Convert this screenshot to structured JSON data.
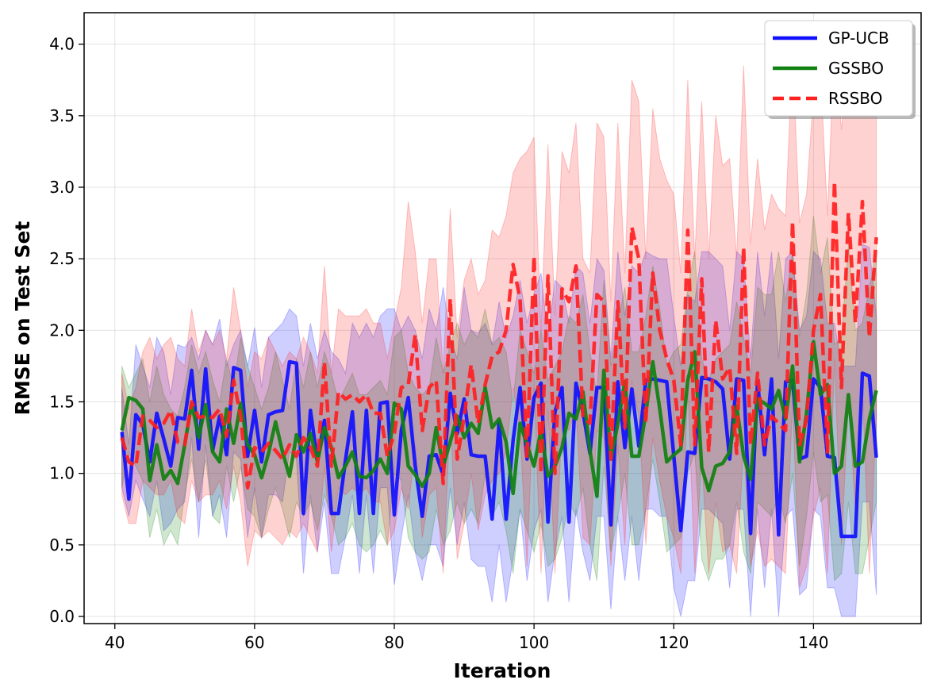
{
  "chart_data": {
    "type": "line",
    "title": "",
    "xlabel": "Iteration",
    "ylabel": "RMSE on Test Set",
    "xlim": [
      35.6,
      155.4
    ],
    "ylim": [
      -0.05,
      4.22
    ],
    "xticks": [
      40,
      60,
      80,
      100,
      120,
      140
    ],
    "yticks": [
      0.0,
      0.5,
      1.0,
      1.5,
      2.0,
      2.5,
      3.0,
      3.5,
      4.0
    ],
    "ytick_labels": [
      "0.0",
      "0.5",
      "1.0",
      "1.5",
      "2.0",
      "2.5",
      "3.0",
      "3.5",
      "4.0"
    ],
    "grid": true,
    "legend_position": "top-right",
    "x": [
      41,
      42,
      43,
      44,
      45,
      46,
      47,
      48,
      49,
      50,
      51,
      52,
      53,
      54,
      55,
      56,
      57,
      58,
      59,
      60,
      61,
      62,
      63,
      64,
      65,
      66,
      67,
      68,
      69,
      70,
      71,
      72,
      73,
      74,
      75,
      76,
      77,
      78,
      79,
      80,
      81,
      82,
      83,
      84,
      85,
      86,
      87,
      88,
      89,
      90,
      91,
      92,
      93,
      94,
      95,
      96,
      97,
      98,
      99,
      100,
      101,
      102,
      103,
      104,
      105,
      106,
      107,
      108,
      109,
      110,
      111,
      112,
      113,
      114,
      115,
      116,
      117,
      118,
      119,
      120,
      121,
      122,
      123,
      124,
      125,
      126,
      127,
      128,
      129,
      130,
      131,
      132,
      133,
      134,
      135,
      136,
      137,
      138,
      139,
      140,
      141,
      142,
      143,
      144,
      145,
      146,
      147,
      148,
      149
    ],
    "series": [
      {
        "name": "GP-UCB",
        "color": "#1010ff",
        "dash": "solid",
        "values": [
          1.29,
          0.82,
          1.41,
          1.34,
          1.08,
          1.42,
          1.24,
          1.05,
          1.39,
          1.38,
          1.72,
          1.17,
          1.73,
          1.16,
          1.4,
          1.13,
          1.74,
          1.72,
          1.12,
          1.44,
          1.08,
          1.41,
          1.43,
          1.44,
          1.78,
          1.77,
          0.72,
          1.44,
          1.09,
          1.37,
          0.72,
          0.72,
          1.09,
          1.43,
          0.72,
          1.44,
          0.72,
          1.49,
          1.5,
          0.71,
          1.3,
          1.53,
          1.05,
          0.7,
          1.12,
          1.13,
          0.99,
          1.56,
          1.28,
          1.52,
          1.13,
          1.12,
          1.12,
          0.68,
          1.36,
          0.68,
          1.23,
          1.6,
          1.1,
          1.53,
          1.63,
          0.66,
          1.43,
          1.6,
          0.66,
          1.63,
          1.43,
          1.14,
          1.6,
          1.6,
          0.64,
          1.64,
          1.18,
          1.59,
          1.19,
          1.65,
          1.66,
          1.65,
          1.64,
          1.12,
          0.6,
          1.15,
          1.14,
          1.67,
          1.66,
          1.64,
          1.59,
          1.1,
          1.66,
          1.65,
          0.58,
          1.64,
          1.13,
          1.66,
          0.57,
          1.64,
          1.65,
          1.1,
          1.12,
          1.66,
          1.6,
          1.12,
          1.11,
          0.56,
          0.56,
          0.56,
          1.7,
          1.68,
          1.11
        ]
      },
      {
        "name": "GSSBO",
        "color": "#108010",
        "dash": "solid",
        "values": [
          1.3,
          1.53,
          1.51,
          1.45,
          0.95,
          1.2,
          0.96,
          1.02,
          0.93,
          1.2,
          1.49,
          1.25,
          1.48,
          1.15,
          1.08,
          1.45,
          1.21,
          1.49,
          1.2,
          1.13,
          0.97,
          1.14,
          1.36,
          1.15,
          0.98,
          1.27,
          1.15,
          1.28,
          1.08,
          1.32,
          1.18,
          0.97,
          1.05,
          1.15,
          0.98,
          0.97,
          1.02,
          1.1,
          1.0,
          1.49,
          1.45,
          1.05,
          0.99,
          0.91,
          1.0,
          1.32,
          1.05,
          1.22,
          1.4,
          1.25,
          1.35,
          1.28,
          1.6,
          1.32,
          1.38,
          1.22,
          0.86,
          1.35,
          1.2,
          1.05,
          1.3,
          0.98,
          1.05,
          1.18,
          1.42,
          1.38,
          1.57,
          1.16,
          0.84,
          1.72,
          1.1,
          1.35,
          1.64,
          1.12,
          1.12,
          1.42,
          1.78,
          1.45,
          1.08,
          1.13,
          1.17,
          1.65,
          1.85,
          1.04,
          0.88,
          1.05,
          1.07,
          1.15,
          1.47,
          1.12,
          0.96,
          1.52,
          1.49,
          1.45,
          1.58,
          1.38,
          1.75,
          1.08,
          1.42,
          1.92,
          1.55,
          1.62,
          1.0,
          1.05,
          1.55,
          1.05,
          1.08,
          1.38,
          1.58
        ]
      },
      {
        "name": "RSSBO",
        "color": "#ff2020",
        "dash": "dashed",
        "values": [
          1.25,
          1.08,
          1.05,
          1.4,
          1.37,
          1.32,
          1.35,
          1.44,
          1.22,
          1.2,
          1.5,
          1.39,
          1.4,
          1.39,
          1.45,
          1.26,
          1.65,
          1.4,
          0.9,
          1.18,
          1.15,
          1.21,
          1.16,
          1.1,
          1.2,
          1.12,
          1.25,
          1.18,
          1.05,
          1.78,
          1.05,
          1.57,
          1.52,
          1.55,
          1.5,
          1.55,
          1.42,
          1.42,
          1.12,
          1.28,
          1.6,
          1.62,
          1.97,
          1.3,
          1.6,
          1.65,
          0.93,
          2.22,
          1.1,
          1.4,
          1.76,
          1.35,
          1.62,
          1.82,
          1.85,
          2.0,
          2.46,
          2.22,
          1.1,
          2.52,
          1.0,
          2.38,
          1.0,
          2.29,
          2.2,
          2.45,
          1.39,
          1.35,
          2.25,
          2.2,
          1.1,
          2.2,
          1.32,
          2.72,
          2.5,
          1.35,
          2.4,
          2.0,
          1.8,
          1.65,
          1.2,
          2.7,
          1.2,
          2.36,
          1.15,
          2.07,
          1.66,
          1.74,
          1.14,
          2.58,
          1.2,
          1.7,
          1.2,
          1.4,
          1.35,
          1.3,
          2.76,
          1.2,
          1.38,
          2.0,
          2.25,
          1.15,
          3.04,
          1.6,
          2.82,
          2.05,
          2.9,
          1.95,
          2.65
        ]
      }
    ],
    "bands": [
      {
        "series": "GP-UCB",
        "color": "#1010ff",
        "upper": [
          1.6,
          1.2,
          1.9,
          1.75,
          1.6,
          1.95,
          1.85,
          1.55,
          1.9,
          1.88,
          1.95,
          1.8,
          2.0,
          1.9,
          2.08,
          1.75,
          1.9,
          2.0,
          1.75,
          2.02,
          1.6,
          1.95,
          2.0,
          2.05,
          2.15,
          2.1,
          1.75,
          2.05,
          1.8,
          2.0,
          1.85,
          1.8,
          1.7,
          2.05,
          1.95,
          2.05,
          1.95,
          2.1,
          2.15,
          2.15,
          2.0,
          2.1,
          2.0,
          1.8,
          2.15,
          2.0,
          2.3,
          1.95,
          1.8,
          2.3,
          2.0,
          1.98,
          2.05,
          1.9,
          2.2,
          1.95,
          2.1,
          2.35,
          2.05,
          2.25,
          2.4,
          1.95,
          2.35,
          2.3,
          2.05,
          2.45,
          2.4,
          2.05,
          2.5,
          2.42,
          1.8,
          2.55,
          2.1,
          2.45,
          2.4,
          2.55,
          2.52,
          2.5,
          2.5,
          2.1,
          1.75,
          2.25,
          2.2,
          2.55,
          2.55,
          2.5,
          2.45,
          2.0,
          2.55,
          2.5,
          1.8,
          2.55,
          2.1,
          2.55,
          1.8,
          2.5,
          2.55,
          2.0,
          2.1,
          2.55,
          2.5,
          2.05,
          2.05,
          1.75,
          1.75,
          1.75,
          2.6,
          2.58,
          2.1
        ],
        "lower": [
          0.9,
          0.7,
          0.95,
          0.82,
          0.7,
          0.95,
          0.6,
          0.65,
          0.75,
          0.8,
          1.25,
          0.55,
          1.2,
          0.7,
          0.85,
          0.55,
          1.15,
          1.1,
          0.55,
          0.9,
          0.55,
          0.85,
          0.85,
          0.8,
          1.15,
          1.1,
          0.3,
          0.85,
          0.45,
          0.8,
          0.3,
          0.3,
          0.55,
          0.85,
          0.3,
          0.85,
          0.3,
          0.9,
          0.9,
          0.22,
          0.55,
          0.85,
          0.45,
          0.25,
          0.5,
          0.5,
          0.35,
          0.9,
          0.5,
          0.8,
          0.4,
          0.35,
          0.35,
          0.1,
          0.5,
          0.1,
          0.4,
          0.75,
          0.25,
          0.6,
          0.75,
          0.1,
          0.45,
          0.7,
          0.1,
          0.75,
          0.45,
          0.25,
          0.7,
          0.7,
          0.05,
          0.7,
          0.25,
          0.7,
          0.25,
          0.75,
          0.75,
          0.7,
          0.7,
          0.2,
          0.0,
          0.25,
          0.25,
          0.75,
          0.75,
          0.7,
          0.65,
          0.2,
          0.75,
          0.75,
          0.0,
          0.75,
          0.2,
          0.75,
          0.0,
          0.7,
          0.75,
          0.15,
          0.2,
          0.75,
          0.7,
          0.2,
          0.2,
          0.0,
          0.0,
          0.0,
          0.8,
          0.8,
          0.15
        ]
      },
      {
        "series": "GSSBO",
        "color": "#108010",
        "upper": [
          1.75,
          1.6,
          1.7,
          1.8,
          1.5,
          1.75,
          1.55,
          1.45,
          1.4,
          1.6,
          1.9,
          1.7,
          1.85,
          1.65,
          1.5,
          1.8,
          1.6,
          1.95,
          1.75,
          1.6,
          1.45,
          1.6,
          1.85,
          1.65,
          1.45,
          1.8,
          1.6,
          1.85,
          1.6,
          1.85,
          1.7,
          1.5,
          1.6,
          1.7,
          1.55,
          1.55,
          1.6,
          1.65,
          1.55,
          1.95,
          2.0,
          1.7,
          1.6,
          1.55,
          1.6,
          1.95,
          1.7,
          1.9,
          2.05,
          1.9,
          2.0,
          1.95,
          2.15,
          1.9,
          1.95,
          1.85,
          1.5,
          2.0,
          1.85,
          1.7,
          2.0,
          1.65,
          1.75,
          1.85,
          2.1,
          2.05,
          2.25,
          1.85,
          1.55,
          2.35,
          1.75,
          2.05,
          2.3,
          1.85,
          1.85,
          2.1,
          2.45,
          2.15,
          1.75,
          1.85,
          1.9,
          2.3,
          2.55,
          1.8,
          1.65,
          1.8,
          1.85,
          1.9,
          2.2,
          1.95,
          1.7,
          2.3,
          2.25,
          2.25,
          2.55,
          2.2,
          2.55,
          1.95,
          2.25,
          2.8,
          2.4,
          2.65,
          1.9,
          1.95,
          2.6,
          2.0,
          2.05,
          2.3,
          2.55
        ],
        "lower": [
          0.9,
          1.15,
          1.05,
          0.95,
          0.55,
          0.75,
          0.5,
          0.6,
          0.5,
          0.85,
          1.1,
          0.8,
          1.1,
          0.7,
          0.65,
          1.05,
          0.8,
          1.05,
          0.75,
          0.7,
          0.55,
          0.75,
          0.9,
          0.75,
          0.55,
          0.8,
          0.7,
          0.8,
          0.6,
          0.85,
          0.7,
          0.5,
          0.55,
          0.65,
          0.5,
          0.45,
          0.5,
          0.6,
          0.5,
          1.0,
          0.95,
          0.55,
          0.45,
          0.4,
          0.45,
          0.75,
          0.5,
          0.6,
          0.8,
          0.65,
          0.75,
          0.65,
          1.0,
          0.7,
          0.8,
          0.6,
          0.3,
          0.75,
          0.6,
          0.45,
          0.65,
          0.35,
          0.4,
          0.55,
          0.8,
          0.7,
          0.9,
          0.5,
          0.25,
          1.05,
          0.45,
          0.7,
          1.0,
          0.5,
          0.5,
          0.75,
          1.1,
          0.8,
          0.45,
          0.5,
          0.55,
          1.0,
          1.15,
          0.4,
          0.25,
          0.4,
          0.4,
          0.5,
          0.8,
          0.45,
          0.3,
          0.8,
          0.75,
          0.7,
          0.85,
          0.65,
          1.0,
          0.35,
          0.7,
          1.15,
          0.8,
          0.85,
          0.25,
          0.3,
          0.8,
          0.3,
          0.3,
          0.55,
          0.8
        ]
      },
      {
        "series": "RSSBO",
        "color": "#ff2020",
        "upper": [
          1.7,
          1.45,
          1.6,
          1.85,
          1.95,
          1.8,
          1.9,
          1.95,
          1.8,
          1.75,
          2.15,
          1.85,
          2.0,
          1.9,
          2.0,
          1.8,
          2.3,
          2.0,
          1.6,
          1.85,
          1.8,
          1.95,
          1.85,
          1.75,
          1.85,
          1.8,
          1.95,
          1.85,
          1.7,
          2.45,
          1.7,
          2.15,
          2.1,
          2.1,
          2.1,
          2.15,
          2.05,
          2.05,
          1.8,
          2.05,
          2.3,
          2.9,
          2.55,
          2.05,
          2.5,
          2.5,
          1.7,
          2.85,
          1.95,
          2.35,
          2.5,
          2.25,
          2.35,
          2.7,
          2.65,
          2.8,
          3.1,
          3.2,
          3.25,
          3.35,
          2.0,
          3.3,
          2.1,
          3.25,
          3.1,
          3.45,
          2.5,
          2.4,
          3.45,
          3.35,
          2.2,
          3.45,
          2.4,
          3.75,
          3.6,
          2.5,
          3.55,
          3.2,
          3.05,
          2.95,
          2.4,
          3.75,
          2.5,
          3.6,
          2.5,
          3.5,
          3.15,
          3.2,
          2.5,
          3.85,
          2.6,
          3.2,
          2.7,
          2.95,
          2.85,
          2.8,
          3.95,
          2.75,
          2.95,
          3.65,
          3.8,
          2.8,
          4.05,
          3.4,
          3.95,
          3.6,
          3.95,
          3.55,
          3.8
        ],
        "lower": [
          0.85,
          0.65,
          0.65,
          0.95,
          0.9,
          0.85,
          0.85,
          0.95,
          0.7,
          0.65,
          0.95,
          0.8,
          0.85,
          0.85,
          0.95,
          0.75,
          1.05,
          0.8,
          0.35,
          0.6,
          0.55,
          0.6,
          0.55,
          0.5,
          0.6,
          0.55,
          0.65,
          0.55,
          0.45,
          1.05,
          0.45,
          0.9,
          0.85,
          0.9,
          0.85,
          0.9,
          0.8,
          0.8,
          0.5,
          0.6,
          0.9,
          0.75,
          1.2,
          0.55,
          0.85,
          0.9,
          0.3,
          1.4,
          0.4,
          0.65,
          1.0,
          0.6,
          0.85,
          0.95,
          1.0,
          1.15,
          1.6,
          1.3,
          0.35,
          1.6,
          0.3,
          1.45,
          0.3,
          1.35,
          1.3,
          1.45,
          0.55,
          0.5,
          1.3,
          1.25,
          0.35,
          1.2,
          0.5,
          1.65,
          1.4,
          0.5,
          1.25,
          0.95,
          0.7,
          0.55,
          0.3,
          1.6,
          0.3,
          1.1,
          0.3,
          0.8,
          0.45,
          0.5,
          0.3,
          1.2,
          0.35,
          0.6,
          0.35,
          0.4,
          0.35,
          0.3,
          1.5,
          0.2,
          0.35,
          0.7,
          0.9,
          0.3,
          1.8,
          0.5,
          1.5,
          0.75,
          1.6,
          0.3,
          1.4
        ]
      }
    ]
  }
}
